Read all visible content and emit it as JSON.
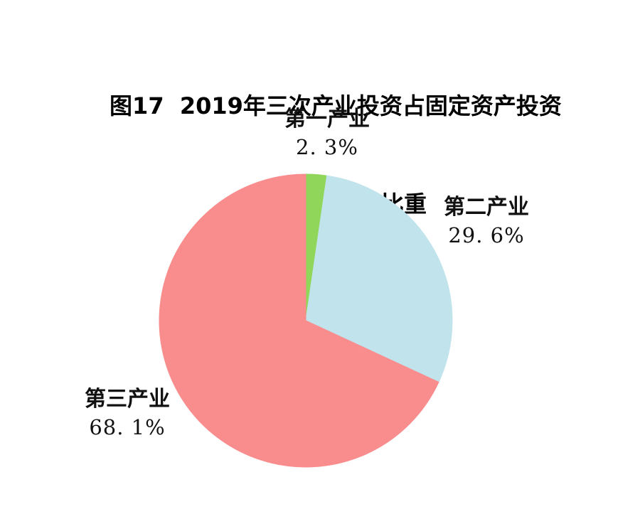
{
  "page": {
    "background_color": "#ffffff",
    "text_color": "#111111"
  },
  "title": {
    "line1": "图17  2019年三次产业投资占固定资产投资",
    "line2": "（不含农户）比重"
  },
  "chart_data": {
    "type": "pie",
    "title": "图17 2019年三次产业投资占固定资产投资（不含农户）比重",
    "unit": "%",
    "categories": [
      "第一产业",
      "第二产业",
      "第三产业"
    ],
    "values": [
      2.3,
      29.6,
      68.1
    ],
    "slices": [
      {
        "label": "第一产业",
        "value": 2.3,
        "value_display": "2. 3%",
        "color": "#90d65a"
      },
      {
        "label": "第二产业",
        "value": 29.6,
        "value_display": "29. 6%",
        "color": "#c1e3ec"
      },
      {
        "label": "第三产业",
        "value": 68.1,
        "value_display": "68. 1%",
        "color": "#f98d8d"
      }
    ],
    "start_angle_deg": 0,
    "direction": "clockwise",
    "legend_position": "none",
    "data_labels": "outside",
    "grid": false
  }
}
